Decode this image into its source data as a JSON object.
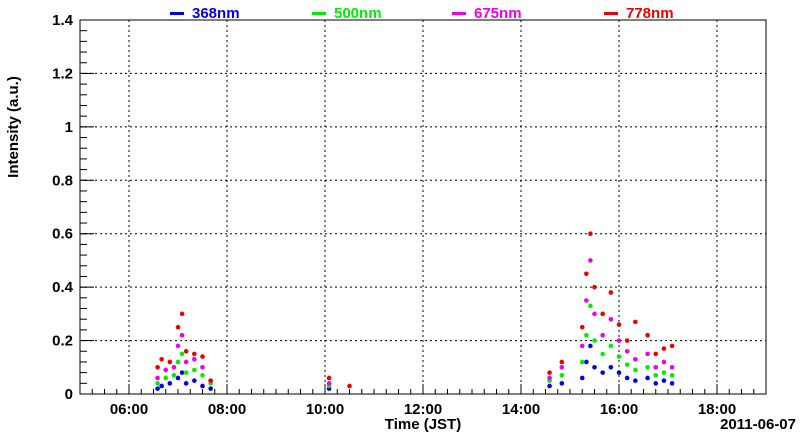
{
  "chart_data": {
    "type": "scatter",
    "xlabel": "Time (JST)",
    "ylabel": "Intensity (a.u.)",
    "date_label": "2011-06-07",
    "xlim": [
      "05:00",
      "19:00"
    ],
    "ylim": [
      0,
      1.4
    ],
    "x_ticks": [
      "06:00",
      "08:00",
      "10:00",
      "12:00",
      "14:00",
      "16:00",
      "18:00"
    ],
    "y_ticks": [
      "0",
      "0.2",
      "0.4",
      "0.6",
      "0.8",
      "1",
      "1.2",
      "1.4"
    ],
    "grid": true,
    "legend_position": "top",
    "series": [
      {
        "name": "368nm",
        "color": "#0000ee",
        "points": [
          [
            "06:35",
            0.02
          ],
          [
            "06:40",
            0.03
          ],
          [
            "06:50",
            0.04
          ],
          [
            "07:00",
            0.06
          ],
          [
            "07:05",
            0.08
          ],
          [
            "07:10",
            0.04
          ],
          [
            "07:20",
            0.05
          ],
          [
            "07:30",
            0.03
          ],
          [
            "07:40",
            0.02
          ],
          [
            "10:05",
            0.02
          ],
          [
            "14:35",
            0.03
          ],
          [
            "14:50",
            0.04
          ],
          [
            "15:15",
            0.06
          ],
          [
            "15:20",
            0.12
          ],
          [
            "15:25",
            0.18
          ],
          [
            "15:30",
            0.1
          ],
          [
            "15:40",
            0.08
          ],
          [
            "15:50",
            0.1
          ],
          [
            "16:00",
            0.08
          ],
          [
            "16:10",
            0.06
          ],
          [
            "16:20",
            0.05
          ],
          [
            "16:35",
            0.06
          ],
          [
            "16:45",
            0.04
          ],
          [
            "16:55",
            0.05
          ],
          [
            "17:05",
            0.04
          ]
        ]
      },
      {
        "name": "500nm",
        "color": "#00ee00",
        "points": [
          [
            "06:35",
            0.04
          ],
          [
            "06:45",
            0.06
          ],
          [
            "06:55",
            0.07
          ],
          [
            "07:00",
            0.12
          ],
          [
            "07:05",
            0.15
          ],
          [
            "07:10",
            0.08
          ],
          [
            "07:20",
            0.09
          ],
          [
            "07:30",
            0.07
          ],
          [
            "07:40",
            0.04
          ],
          [
            "10:05",
            0.03
          ],
          [
            "14:35",
            0.05
          ],
          [
            "14:50",
            0.07
          ],
          [
            "15:15",
            0.12
          ],
          [
            "15:20",
            0.22
          ],
          [
            "15:25",
            0.33
          ],
          [
            "15:30",
            0.2
          ],
          [
            "15:40",
            0.15
          ],
          [
            "15:50",
            0.18
          ],
          [
            "16:00",
            0.14
          ],
          [
            "16:10",
            0.11
          ],
          [
            "16:20",
            0.09
          ],
          [
            "16:35",
            0.1
          ],
          [
            "16:45",
            0.07
          ],
          [
            "16:55",
            0.08
          ],
          [
            "17:05",
            0.07
          ]
        ]
      },
      {
        "name": "675nm",
        "color": "#ee00ee",
        "points": [
          [
            "06:35",
            0.06
          ],
          [
            "06:45",
            0.09
          ],
          [
            "06:55",
            0.1
          ],
          [
            "07:00",
            0.18
          ],
          [
            "07:05",
            0.22
          ],
          [
            "07:10",
            0.12
          ],
          [
            "07:20",
            0.13
          ],
          [
            "07:30",
            0.1
          ],
          [
            "07:40",
            0.05
          ],
          [
            "10:05",
            0.04
          ],
          [
            "14:35",
            0.06
          ],
          [
            "14:50",
            0.1
          ],
          [
            "15:15",
            0.18
          ],
          [
            "15:20",
            0.35
          ],
          [
            "15:25",
            0.5
          ],
          [
            "15:30",
            0.3
          ],
          [
            "15:40",
            0.22
          ],
          [
            "15:50",
            0.28
          ],
          [
            "16:00",
            0.2
          ],
          [
            "16:10",
            0.16
          ],
          [
            "16:20",
            0.13
          ],
          [
            "16:35",
            0.15
          ],
          [
            "16:45",
            0.1
          ],
          [
            "16:55",
            0.12
          ],
          [
            "17:05",
            0.1
          ]
        ]
      },
      {
        "name": "778nm",
        "color": "#ee0000",
        "points": [
          [
            "06:35",
            0.1
          ],
          [
            "06:40",
            0.13
          ],
          [
            "06:50",
            0.12
          ],
          [
            "07:00",
            0.25
          ],
          [
            "07:05",
            0.3
          ],
          [
            "07:10",
            0.16
          ],
          [
            "07:20",
            0.15
          ],
          [
            "07:30",
            0.14
          ],
          [
            "07:40",
            0.05
          ],
          [
            "10:05",
            0.06
          ],
          [
            "10:30",
            0.03
          ],
          [
            "14:35",
            0.08
          ],
          [
            "14:50",
            0.12
          ],
          [
            "15:15",
            0.25
          ],
          [
            "15:20",
            0.45
          ],
          [
            "15:25",
            0.6
          ],
          [
            "15:30",
            0.4
          ],
          [
            "15:40",
            0.3
          ],
          [
            "15:50",
            0.38
          ],
          [
            "16:00",
            0.26
          ],
          [
            "16:10",
            0.2
          ],
          [
            "16:20",
            0.27
          ],
          [
            "16:35",
            0.22
          ],
          [
            "16:45",
            0.15
          ],
          [
            "16:55",
            0.17
          ],
          [
            "17:05",
            0.18
          ]
        ]
      }
    ]
  }
}
